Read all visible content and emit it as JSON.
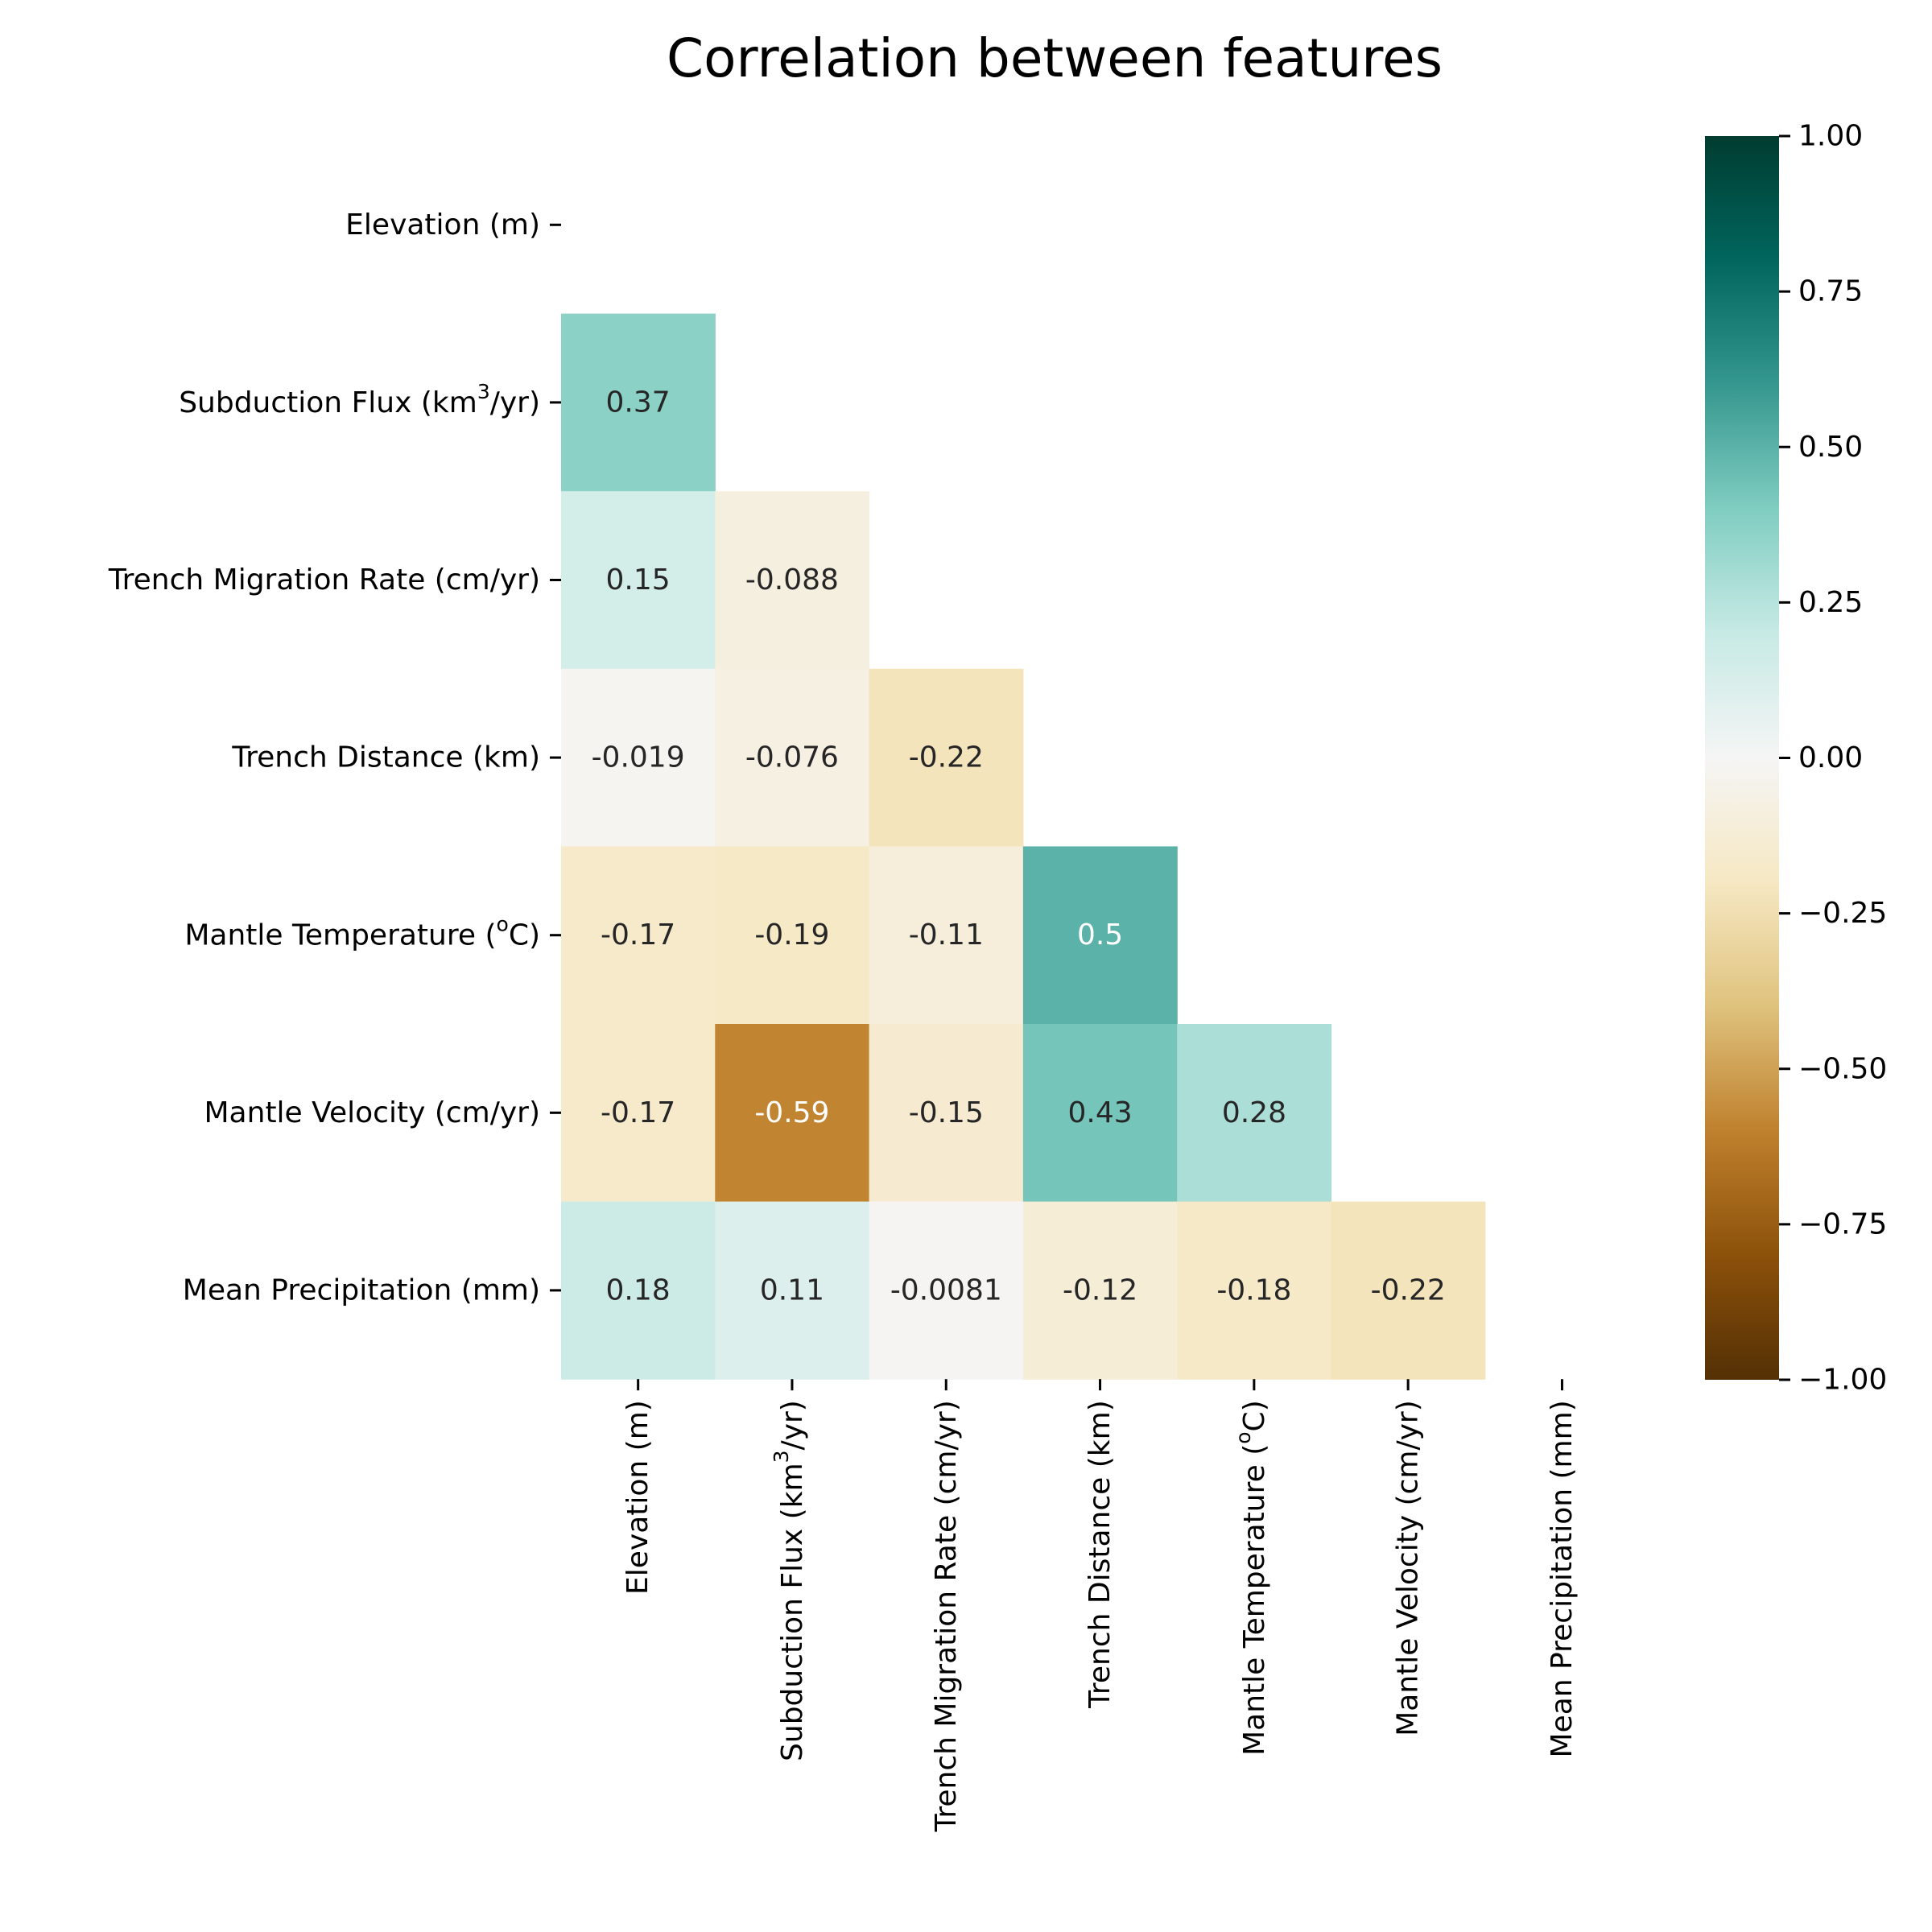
{
  "chart_data": {
    "type": "heatmap",
    "title": "Correlation between features",
    "row_labels": [
      "Elevation (m)",
      "Subduction Flux (km3/yr)",
      "Trench Migration Rate (cm/yr)",
      "Trench Distance (km)",
      "Mantle Temperature (oC)",
      "Mantle Velocity (cm/yr)",
      "Mean Precipitation (mm)"
    ],
    "col_labels": [
      "Elevation (m)",
      "Subduction Flux (km3/yr)",
      "Trench Migration Rate (cm/yr)",
      "Trench Distance (km)",
      "Mantle Temperature (oC)",
      "Mantle Velocity (cm/yr)",
      "Mean Precipitation (mm)"
    ],
    "mask": "upper triangle including diagonal",
    "values": [
      [
        null,
        null,
        null,
        null,
        null,
        null,
        null
      ],
      [
        0.37,
        null,
        null,
        null,
        null,
        null,
        null
      ],
      [
        0.15,
        -0.088,
        null,
        null,
        null,
        null,
        null
      ],
      [
        -0.019,
        -0.076,
        -0.22,
        null,
        null,
        null,
        null
      ],
      [
        -0.17,
        -0.19,
        -0.11,
        0.5,
        null,
        null,
        null
      ],
      [
        -0.17,
        -0.59,
        -0.15,
        0.43,
        0.28,
        null,
        null
      ],
      [
        0.18,
        0.11,
        -0.0081,
        -0.12,
        -0.18,
        -0.22,
        null
      ]
    ],
    "value_labels": [
      [
        null,
        null,
        null,
        null,
        null,
        null,
        null
      ],
      [
        "0.37",
        null,
        null,
        null,
        null,
        null,
        null
      ],
      [
        "0.15",
        "-0.088",
        null,
        null,
        null,
        null,
        null
      ],
      [
        "-0.019",
        "-0.076",
        "-0.22",
        null,
        null,
        null,
        null
      ],
      [
        "-0.17",
        "-0.19",
        "-0.11",
        "0.5",
        null,
        null,
        null
      ],
      [
        "-0.17",
        "-0.59",
        "-0.15",
        "0.43",
        "0.28",
        null,
        null
      ],
      [
        "0.18",
        "0.11",
        "-0.0081",
        "-0.12",
        "-0.18",
        "-0.22",
        null
      ]
    ],
    "colormap": "BrBG",
    "vmin": -1.0,
    "vmax": 1.0,
    "colorbar_ticks": [
      "1.00",
      "0.75",
      "0.50",
      "0.25",
      "0.00",
      "−0.25",
      "−0.50",
      "−0.75",
      "−1.00"
    ],
    "colorbar_stops": [
      "#543005",
      "#8c510a",
      "#bf812d",
      "#dfc27d",
      "#f6e8c3",
      "#f5f5f5",
      "#c7eae5",
      "#80cdc1",
      "#35978f",
      "#01665e",
      "#003c30"
    ],
    "grid": false
  }
}
